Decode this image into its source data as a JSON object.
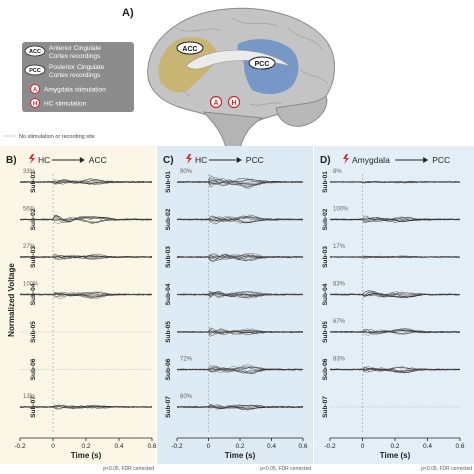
{
  "panelA": {
    "letter": "A)",
    "tag_acc": "ACC",
    "tag_pcc": "PCC",
    "tag_a": "A",
    "tag_h": "H",
    "legend": {
      "acc_short": "ACC",
      "acc_line1": "Anterior Cingulate",
      "acc_line2": "Cortex recordings",
      "pcc_short": "PCC",
      "pcc_line1": "Posterior Cingulate",
      "pcc_line2": "Cortex recordings",
      "a_short": "A",
      "a_label": "Amygdala stimulation",
      "h_short": "H",
      "h_label": "HC stimulation"
    },
    "no_stim_label": "No stimulation or recording site",
    "colors": {
      "acc": "#c9b36a",
      "pcc": "#6f93c8",
      "brain": "#bfbfbf",
      "legend_bg": "#8c8c8c",
      "stim": "#c8282d"
    }
  },
  "y_axis_label": "Normalized Voltage",
  "subjects": [
    "Sub-01",
    "Sub-02",
    "Sub-03",
    "Sub-04",
    "Sub-05",
    "Sub-06",
    "Sub-07"
  ],
  "time_ticks": [
    "-0.2",
    "0",
    "0.2",
    "0.4",
    "0.6"
  ],
  "time_label": "Time (s)",
  "stats_note": "p<0.05, FDR corrected",
  "panels": [
    {
      "letter": "B)",
      "from": "HC",
      "to": "ACC",
      "bg": "#fbf6e6",
      "percents": [
        "33%",
        "56%",
        "27%",
        "100%",
        "",
        "",
        "13%"
      ],
      "strength": [
        0.5,
        0.7,
        0.5,
        0.9,
        0.0,
        0.0,
        0.45
      ]
    },
    {
      "letter": "C)",
      "from": "HC",
      "to": "PCC",
      "bg": "#deebf5",
      "percents": [
        "90%",
        "",
        "",
        "",
        "",
        "72%",
        "60%"
      ],
      "strength": [
        1.0,
        0.8,
        0.8,
        0.95,
        0.7,
        0.85,
        0.5
      ]
    },
    {
      "letter": "D)",
      "from": "Amygdala",
      "to": "PCC",
      "bg": "#e4eef7",
      "percents": [
        "8%",
        "100%",
        "17%",
        "83%",
        "67%",
        "83%",
        ""
      ],
      "strength": [
        0.15,
        0.6,
        0.2,
        0.8,
        0.6,
        0.65,
        0.0
      ]
    }
  ]
}
